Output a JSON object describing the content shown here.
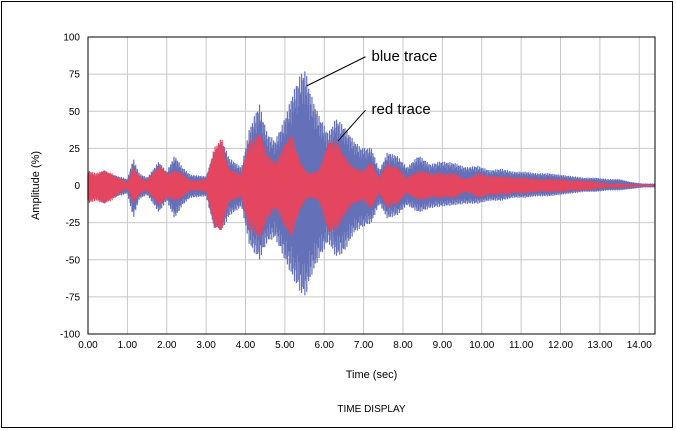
{
  "chart_data": {
    "type": "line",
    "title": "",
    "caption": "TIME DISPLAY",
    "xlabel": "Time (sec)",
    "ylabel": "Amplitude (%)",
    "xlim": [
      0,
      14.4
    ],
    "ylim": [
      -100,
      100
    ],
    "grid": true,
    "x_ticks": [
      "0.00",
      "1.00",
      "2.00",
      "3.00",
      "4.00",
      "5.00",
      "6.00",
      "7.00",
      "8.00",
      "9.00",
      "10.00",
      "11.00",
      "12.00",
      "13.00",
      "14.00"
    ],
    "y_ticks": [
      "100",
      "75",
      "50",
      "25",
      "0",
      "-25",
      "-50",
      "-75",
      "-100"
    ],
    "series": [
      {
        "name": "blue trace",
        "color": "#6470b8",
        "envelope": {
          "t": [
            0.0,
            0.2,
            0.4,
            0.6,
            0.9,
            1.0,
            1.15,
            1.3,
            1.5,
            1.8,
            2.0,
            2.2,
            2.4,
            2.6,
            3.0,
            3.2,
            3.4,
            3.6,
            3.9,
            4.1,
            4.35,
            4.55,
            4.75,
            5.0,
            5.2,
            5.4,
            5.52,
            5.65,
            5.85,
            6.1,
            6.3,
            6.5,
            6.75,
            6.95,
            7.2,
            7.4,
            7.6,
            7.85,
            8.1,
            8.4,
            8.7,
            8.95,
            9.3,
            9.6,
            9.9,
            10.2,
            10.5,
            10.8,
            11.1,
            11.4,
            11.7,
            12.0,
            12.3,
            12.6,
            12.9,
            13.2,
            13.5,
            13.8,
            14.1,
            14.4
          ],
          "pos": [
            8,
            6,
            10,
            7,
            5,
            4,
            18,
            8,
            5,
            16,
            9,
            20,
            12,
            7,
            6,
            22,
            30,
            18,
            12,
            38,
            55,
            35,
            30,
            45,
            62,
            75,
            78,
            62,
            48,
            35,
            45,
            40,
            30,
            25,
            25,
            10,
            22,
            20,
            12,
            20,
            14,
            16,
            15,
            12,
            13,
            10,
            11,
            9,
            9,
            8,
            8,
            7,
            6,
            5,
            5,
            4,
            4,
            2,
            1,
            1
          ],
          "neg": [
            -10,
            -8,
            -12,
            -8,
            -6,
            -5,
            -22,
            -9,
            -6,
            -18,
            -10,
            -22,
            -13,
            -8,
            -7,
            -28,
            -30,
            -20,
            -14,
            -40,
            -50,
            -38,
            -35,
            -50,
            -62,
            -72,
            -75,
            -62,
            -50,
            -38,
            -48,
            -45,
            -32,
            -28,
            -25,
            -12,
            -22,
            -20,
            -13,
            -18,
            -15,
            -14,
            -13,
            -12,
            -12,
            -10,
            -10,
            -8,
            -8,
            -7,
            -7,
            -6,
            -5,
            -4,
            -4,
            -3,
            -3,
            -2,
            -1,
            -1
          ]
        }
      },
      {
        "name": "red trace",
        "color": "#e4465f",
        "envelope": {
          "t": [
            0.0,
            0.2,
            0.4,
            0.6,
            0.9,
            1.0,
            1.15,
            1.3,
            1.5,
            1.8,
            2.0,
            2.2,
            2.4,
            2.6,
            3.0,
            3.2,
            3.4,
            3.6,
            3.9,
            4.1,
            4.35,
            4.55,
            4.75,
            5.0,
            5.2,
            5.4,
            5.52,
            5.65,
            5.85,
            6.1,
            6.3,
            6.5,
            6.75,
            6.95,
            7.2,
            7.4,
            7.6,
            7.85,
            8.1,
            8.4,
            8.7,
            8.95,
            9.3,
            9.6,
            9.9,
            10.2,
            10.5,
            10.8,
            11.1,
            11.4,
            11.7,
            12.0,
            12.3,
            12.6,
            12.9,
            13.2,
            13.5,
            13.8,
            14.1,
            14.4
          ],
          "pos": [
            10,
            8,
            10,
            8,
            3,
            2,
            12,
            6,
            3,
            14,
            8,
            10,
            8,
            3,
            4,
            25,
            32,
            10,
            8,
            30,
            35,
            22,
            15,
            28,
            35,
            15,
            10,
            8,
            10,
            28,
            32,
            20,
            12,
            10,
            15,
            5,
            15,
            12,
            5,
            10,
            8,
            8,
            8,
            4,
            8,
            6,
            6,
            5,
            5,
            4,
            4,
            4,
            3,
            3,
            2,
            1,
            1,
            0.5,
            0.3,
            0.2
          ],
          "neg": [
            -12,
            -10,
            -12,
            -10,
            -3,
            -2,
            -12,
            -6,
            -3,
            -14,
            -8,
            -10,
            -8,
            -3,
            -4,
            -28,
            -30,
            -10,
            -8,
            -30,
            -35,
            -24,
            -15,
            -28,
            -35,
            -15,
            -10,
            -8,
            -10,
            -30,
            -32,
            -20,
            -12,
            -10,
            -15,
            -5,
            -15,
            -12,
            -5,
            -10,
            -8,
            -8,
            -8,
            -4,
            -8,
            -6,
            -6,
            -5,
            -5,
            -4,
            -4,
            -4,
            -3,
            -3,
            -2,
            -1,
            -1,
            -0.5,
            -0.3,
            -0.2
          ]
        }
      }
    ],
    "annotations": [
      {
        "text": "blue trace",
        "x": 5.55,
        "y": 67,
        "tx": 7.2,
        "ty": 84
      },
      {
        "text": "red trace",
        "x": 6.35,
        "y": 30,
        "tx": 7.2,
        "ty": 48
      }
    ]
  }
}
